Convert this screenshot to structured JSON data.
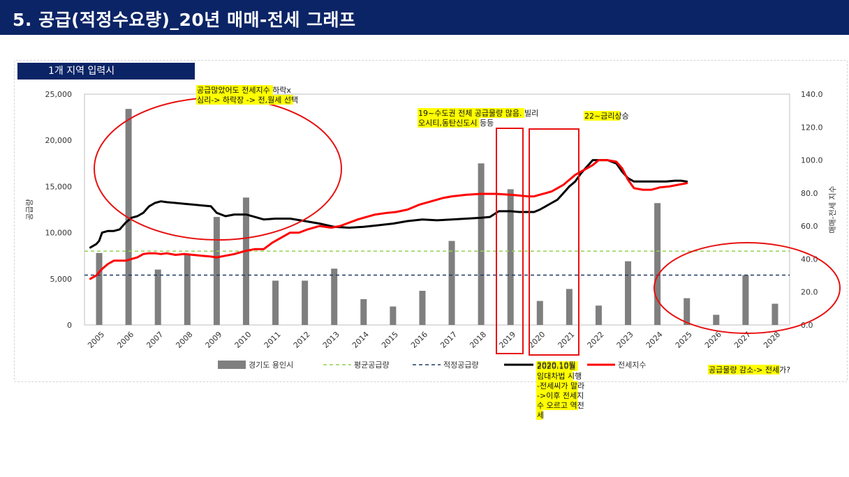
{
  "page": {
    "title": "5. 공급(적정수요량)_20년 매매-전세 그래프",
    "region_label": "1개 지역 입력시"
  },
  "colors": {
    "title_bg": "#0b2466",
    "bar": "#7f7f7f",
    "avg_supply": "#92d050",
    "proper_supply": "#1f3864",
    "trade_index": "#000000",
    "jeonse_index": "#ff0000",
    "note_bg": "#ffff00",
    "annotation": "#e81010"
  },
  "chart_data": {
    "type": "bar",
    "categories": [
      "2005",
      "2006",
      "2007",
      "2008",
      "2009",
      "2010",
      "2011",
      "2012",
      "2013",
      "2014",
      "2015",
      "2016",
      "2017",
      "2018",
      "2019",
      "2020",
      "2021",
      "2022",
      "2023",
      "2024",
      "2025",
      "2026",
      "2027",
      "2028"
    ],
    "y_left": {
      "label": "공급량",
      "range": [
        0,
        25000
      ],
      "ticks": [
        "0",
        "5,000",
        "10,000",
        "15,000",
        "20,000",
        "25,000"
      ]
    },
    "y_right": {
      "label": "매매-전세 지수",
      "range": [
        0,
        140
      ],
      "ticks": [
        "0.0",
        "20.0",
        "40.0",
        "60.0",
        "80.0",
        "100.0",
        "120.0",
        "140.0"
      ]
    },
    "grid": false,
    "legend_position": "bottom",
    "series": [
      {
        "name": "경기도 용인시",
        "kind": "bar",
        "axis": "left",
        "values": [
          7800,
          23400,
          6000,
          7600,
          11700,
          13800,
          4800,
          4800,
          6100,
          2800,
          2000,
          3700,
          9100,
          17500,
          14700,
          2600,
          3900,
          2100,
          6900,
          13200,
          2900,
          1100,
          5400,
          2300
        ]
      },
      {
        "name": "평균공급량",
        "kind": "hline",
        "axis": "left",
        "value": 8000
      },
      {
        "name": "적정공급량",
        "kind": "hline",
        "axis": "left",
        "value": 5400
      },
      {
        "name": "2020.10월",
        "kind": "line",
        "axis": "right",
        "x": [
          2004.7,
          2004.9,
          2005.0,
          2005.1,
          2005.3,
          2005.5,
          2005.7,
          2005.9,
          2006.1,
          2006.3,
          2006.5,
          2006.7,
          2006.9,
          2007.1,
          2007.3,
          2007.6,
          2007.9,
          2008.2,
          2008.5,
          2008.8,
          2009.0,
          2009.3,
          2009.6,
          2010.0,
          2010.3,
          2010.6,
          2011.0,
          2011.5,
          2012.0,
          2012.5,
          2013.0,
          2013.5,
          2014.0,
          2014.5,
          2015.0,
          2015.5,
          2016.0,
          2016.5,
          2017.0,
          2017.5,
          2018.0,
          2018.3,
          2018.6,
          2019.0,
          2019.3,
          2019.6,
          2019.8,
          2020.0,
          2020.2,
          2020.4,
          2020.6,
          2020.8,
          2021.0,
          2021.2,
          2021.4,
          2021.6,
          2021.8,
          2022.0,
          2022.3,
          2022.6,
          2022.8,
          2023.0,
          2023.2,
          2023.4,
          2023.7,
          2024.0,
          2024.3,
          2024.6,
          2024.8,
          2025.0
        ],
        "values": [
          47,
          49,
          51,
          56,
          57,
          57,
          58,
          62,
          65,
          66,
          68,
          72,
          74,
          75,
          74.5,
          74,
          73.5,
          73,
          72.5,
          72,
          68,
          66,
          67,
          67,
          65.5,
          64,
          64.5,
          64.5,
          63,
          61.5,
          59.5,
          59,
          59.5,
          60.5,
          61.5,
          63,
          64,
          63.5,
          64,
          64.5,
          65,
          65.5,
          69,
          69,
          68.5,
          68.5,
          68.5,
          70,
          72,
          74,
          76,
          80,
          84,
          87,
          92,
          96,
          100,
          100,
          100,
          98,
          93,
          89,
          87,
          87,
          87,
          87,
          87,
          87.5,
          87.5,
          87
        ]
      },
      {
        "name": "전세지수",
        "kind": "line",
        "axis": "right",
        "x": [
          2004.7,
          2004.9,
          2005.1,
          2005.3,
          2005.5,
          2005.7,
          2005.9,
          2006.1,
          2006.3,
          2006.5,
          2006.7,
          2006.9,
          2007.1,
          2007.3,
          2007.6,
          2007.9,
          2008.2,
          2008.5,
          2008.8,
          2009.0,
          2009.3,
          2009.6,
          2010.0,
          2010.3,
          2010.6,
          2010.9,
          2011.2,
          2011.5,
          2011.8,
          2012.1,
          2012.5,
          2012.9,
          2013.2,
          2013.5,
          2013.8,
          2014.1,
          2014.4,
          2014.8,
          2015.1,
          2015.5,
          2015.9,
          2016.3,
          2016.7,
          2017.0,
          2017.5,
          2018.0,
          2018.5,
          2019.0,
          2019.3,
          2019.6,
          2019.8,
          2020.0,
          2020.2,
          2020.4,
          2020.6,
          2020.8,
          2021.0,
          2021.2,
          2021.4,
          2021.6,
          2021.8,
          2022.0,
          2022.3,
          2022.6,
          2022.8,
          2023.0,
          2023.2,
          2023.5,
          2023.8,
          2024.1,
          2024.4,
          2024.7,
          2025.0
        ],
        "values": [
          28,
          30,
          34,
          37,
          39,
          39,
          39,
          40,
          41,
          43,
          43.5,
          43.5,
          43,
          43.5,
          42.5,
          43,
          42.5,
          42,
          41.5,
          41,
          42,
          43,
          45,
          46,
          46,
          50,
          53,
          56,
          56,
          58,
          60,
          59,
          60,
          62,
          64,
          65.5,
          67,
          68,
          68.5,
          70,
          73,
          75,
          77,
          78,
          79,
          79.5,
          79.5,
          79,
          78.5,
          78,
          78,
          79,
          80,
          81,
          83,
          85,
          88,
          91,
          93,
          95,
          97,
          100,
          100,
          99,
          95,
          88,
          83,
          82,
          82,
          83.5,
          84,
          85,
          86
        ]
      }
    ]
  },
  "annotations": [
    {
      "lines": [
        "공급많았어도 전세지수 하락x",
        "심리-> 하락장 -> 전,월세 선택"
      ]
    },
    {
      "lines": [
        "19~수도권 전체 공급물량 많음. 빌리",
        "오시티,동탄신도시 등등"
      ]
    },
    {
      "lines": [
        "22~금리상승"
      ]
    },
    {
      "lines": [
        "2020.10월",
        "임대차법 시행",
        "-전세씨가 말라",
        "->이후 전세지",
        "수 오르고 역전",
        "세"
      ]
    },
    {
      "lines": [
        "공급물량 감소-> 전세가?"
      ]
    }
  ]
}
